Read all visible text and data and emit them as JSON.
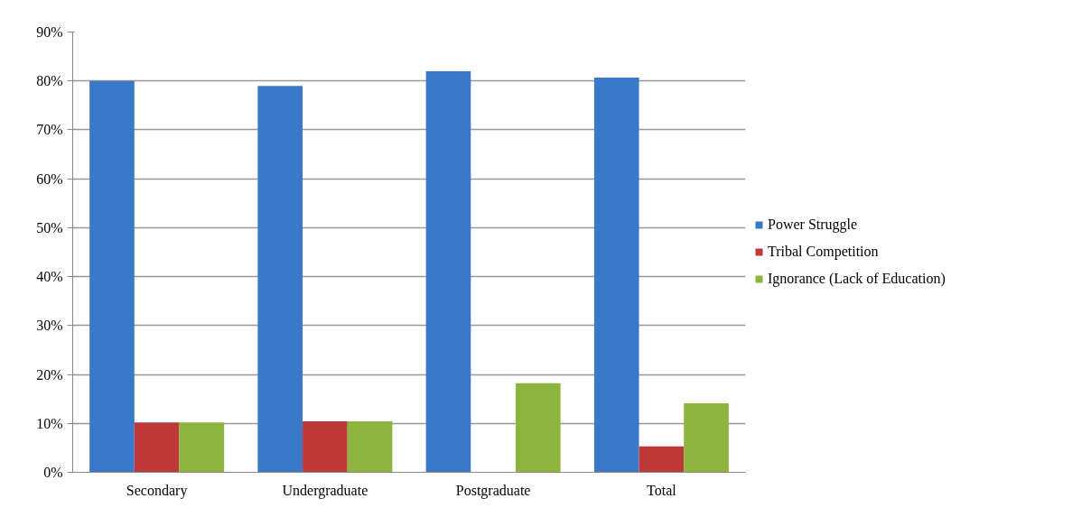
{
  "chart_data": {
    "type": "bar",
    "categories": [
      "Secondary",
      "Undergraduate",
      "Postgraduate",
      "Total"
    ],
    "series": [
      {
        "name": "Power Struggle",
        "color": "#3a78c8",
        "values": [
          80,
          79,
          82,
          80.7
        ]
      },
      {
        "name": "Tribal Competition",
        "color": "#c0393a",
        "values": [
          10.2,
          10.4,
          0,
          5.3
        ]
      },
      {
        "name": "Ignorance (Lack of Education)",
        "color": "#8db43c",
        "values": [
          10.2,
          10.4,
          18.2,
          14.1
        ]
      }
    ],
    "ylim": [
      0,
      90
    ],
    "yticks": [
      {
        "value": 0,
        "label": "0%"
      },
      {
        "value": 10,
        "label": "10%"
      },
      {
        "value": 20,
        "label": "20%"
      },
      {
        "value": 30,
        "label": "30%"
      },
      {
        "value": 40,
        "label": "40%"
      },
      {
        "value": 50,
        "label": "50%"
      },
      {
        "value": 60,
        "label": "60%"
      },
      {
        "value": 70,
        "label": "70%"
      },
      {
        "value": 80,
        "label": "80%"
      },
      {
        "value": 90,
        "label": "90%"
      }
    ],
    "grid": "y",
    "legend": "right"
  }
}
